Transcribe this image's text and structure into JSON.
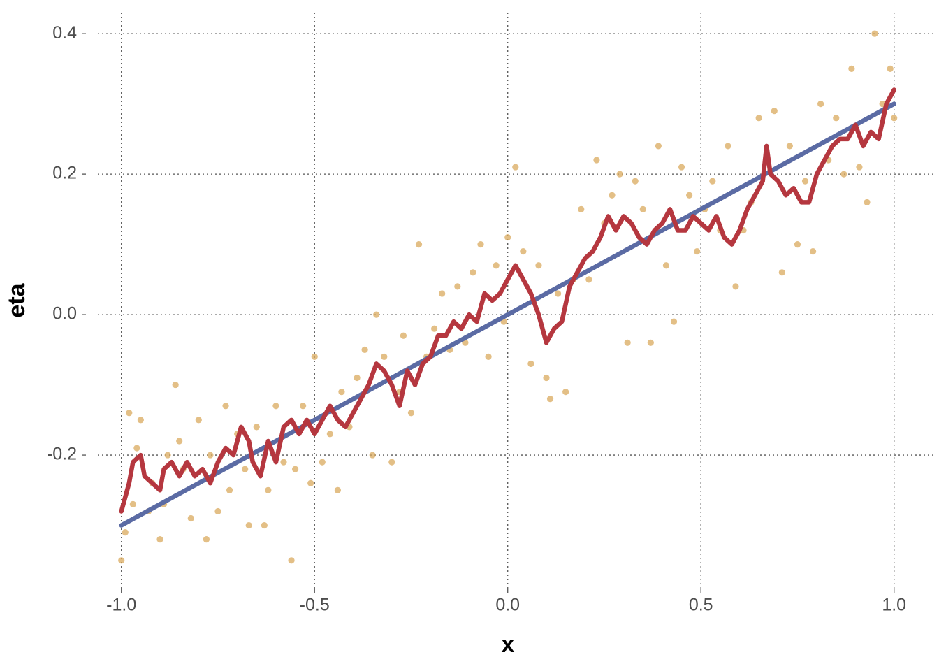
{
  "chart_data": {
    "type": "scatter",
    "x_label": "x",
    "y_label": "eta",
    "xlim": [
      -1.061,
      1.1
    ],
    "ylim": [
      -0.391,
      0.43
    ],
    "xticks": [
      {
        "value": -1.0,
        "label": "-1.0"
      },
      -0.5,
      {
        "value": 0.0,
        "label": "0.0"
      },
      0.5,
      {
        "value": 1.0,
        "label": "1.0"
      }
    ],
    "yticks": [
      -0.2,
      {
        "value": 0.0,
        "label": "0.0"
      },
      0.2,
      0.4
    ],
    "grid": true,
    "series": [
      {
        "type": "scatter",
        "color": "#d9a95e",
        "x": [
          -1.0,
          -0.99,
          -0.98,
          -0.97,
          -0.96,
          -0.95,
          -0.93,
          -0.92,
          -0.9,
          -0.89,
          -0.88,
          -0.86,
          -0.85,
          -0.84,
          -0.82,
          -0.8,
          -0.78,
          -0.77,
          -0.75,
          -0.73,
          -0.72,
          -0.7,
          -0.68,
          -0.67,
          -0.65,
          -0.63,
          -0.62,
          -0.6,
          -0.58,
          -0.56,
          -0.55,
          -0.53,
          -0.51,
          -0.5,
          -0.48,
          -0.46,
          -0.44,
          -0.43,
          -0.41,
          -0.39,
          -0.37,
          -0.35,
          -0.34,
          -0.32,
          -0.3,
          -0.28,
          -0.27,
          -0.25,
          -0.23,
          -0.21,
          -0.19,
          -0.17,
          -0.15,
          -0.13,
          -0.11,
          -0.09,
          -0.07,
          -0.05,
          -0.03,
          -0.01,
          0.0,
          0.02,
          0.04,
          0.06,
          0.08,
          0.1,
          0.11,
          0.13,
          0.15,
          0.17,
          0.19,
          0.21,
          0.23,
          0.25,
          0.27,
          0.29,
          0.31,
          0.33,
          0.35,
          0.37,
          0.39,
          0.41,
          0.43,
          0.45,
          0.47,
          0.49,
          0.51,
          0.53,
          0.55,
          0.57,
          0.59,
          0.61,
          0.63,
          0.65,
          0.67,
          0.69,
          0.71,
          0.73,
          0.75,
          0.77,
          0.79,
          0.81,
          0.83,
          0.85,
          0.87,
          0.89,
          0.91,
          0.93,
          0.95,
          0.97,
          0.99,
          1.0
        ],
        "values": [
          -0.35,
          -0.31,
          -0.14,
          -0.27,
          -0.19,
          -0.15,
          -0.28,
          -0.24,
          -0.32,
          -0.27,
          -0.2,
          -0.1,
          -0.18,
          -0.22,
          -0.29,
          -0.15,
          -0.32,
          -0.2,
          -0.28,
          -0.13,
          -0.25,
          -0.17,
          -0.22,
          -0.3,
          -0.16,
          -0.3,
          -0.25,
          -0.13,
          -0.21,
          -0.35,
          -0.22,
          -0.13,
          -0.24,
          -0.06,
          -0.21,
          -0.17,
          -0.25,
          -0.11,
          -0.16,
          -0.09,
          -0.05,
          -0.2,
          0.0,
          -0.06,
          -0.21,
          -0.11,
          -0.03,
          -0.14,
          0.1,
          -0.06,
          -0.02,
          0.03,
          -0.05,
          0.04,
          -0.04,
          0.06,
          0.1,
          -0.06,
          0.07,
          -0.01,
          0.11,
          0.21,
          0.09,
          -0.07,
          0.07,
          -0.09,
          -0.12,
          0.03,
          -0.11,
          0.05,
          0.15,
          0.05,
          0.22,
          0.13,
          0.17,
          0.2,
          -0.04,
          0.19,
          0.15,
          -0.04,
          0.24,
          0.07,
          -0.01,
          0.21,
          0.17,
          0.09,
          0.15,
          0.19,
          0.12,
          0.24,
          0.04,
          0.12,
          0.16,
          0.28,
          0.22,
          0.29,
          0.06,
          0.24,
          0.1,
          0.19,
          0.09,
          0.3,
          0.22,
          0.28,
          0.2,
          0.35,
          0.21,
          0.16,
          0.4,
          0.3,
          0.35,
          0.28
        ]
      },
      {
        "type": "line",
        "color": "#5b6ba4",
        "x": [
          -1.0,
          1.0
        ],
        "values": [
          -0.3,
          0.3
        ]
      },
      {
        "type": "line",
        "color": "#b5373f",
        "x": [
          -1.0,
          -0.98,
          -0.97,
          -0.95,
          -0.94,
          -0.92,
          -0.9,
          -0.89,
          -0.87,
          -0.85,
          -0.83,
          -0.81,
          -0.79,
          -0.77,
          -0.75,
          -0.73,
          -0.71,
          -0.69,
          -0.67,
          -0.66,
          -0.64,
          -0.62,
          -0.6,
          -0.58,
          -0.56,
          -0.54,
          -0.52,
          -0.5,
          -0.48,
          -0.46,
          -0.44,
          -0.42,
          -0.4,
          -0.38,
          -0.36,
          -0.34,
          -0.32,
          -0.3,
          -0.28,
          -0.26,
          -0.24,
          -0.22,
          -0.2,
          -0.18,
          -0.16,
          -0.14,
          -0.12,
          -0.1,
          -0.08,
          -0.06,
          -0.04,
          -0.02,
          0.0,
          0.02,
          0.04,
          0.06,
          0.08,
          0.1,
          0.12,
          0.14,
          0.16,
          0.18,
          0.2,
          0.22,
          0.24,
          0.26,
          0.28,
          0.3,
          0.32,
          0.34,
          0.36,
          0.38,
          0.4,
          0.42,
          0.44,
          0.46,
          0.48,
          0.5,
          0.52,
          0.54,
          0.56,
          0.58,
          0.6,
          0.62,
          0.64,
          0.66,
          0.67,
          0.68,
          0.7,
          0.72,
          0.74,
          0.76,
          0.78,
          0.8,
          0.82,
          0.84,
          0.86,
          0.88,
          0.9,
          0.92,
          0.94,
          0.96,
          0.98,
          1.0
        ],
        "values": [
          -0.28,
          -0.24,
          -0.21,
          -0.2,
          -0.23,
          -0.24,
          -0.25,
          -0.22,
          -0.21,
          -0.23,
          -0.21,
          -0.23,
          -0.22,
          -0.24,
          -0.21,
          -0.19,
          -0.2,
          -0.16,
          -0.18,
          -0.21,
          -0.23,
          -0.18,
          -0.21,
          -0.16,
          -0.15,
          -0.17,
          -0.15,
          -0.17,
          -0.15,
          -0.13,
          -0.15,
          -0.16,
          -0.14,
          -0.12,
          -0.1,
          -0.07,
          -0.08,
          -0.1,
          -0.13,
          -0.08,
          -0.1,
          -0.07,
          -0.06,
          -0.03,
          -0.03,
          -0.01,
          -0.02,
          0.0,
          -0.01,
          0.03,
          0.02,
          0.03,
          0.05,
          0.07,
          0.05,
          0.03,
          0.0,
          -0.04,
          -0.02,
          -0.01,
          0.04,
          0.06,
          0.08,
          0.09,
          0.11,
          0.14,
          0.12,
          0.14,
          0.13,
          0.11,
          0.1,
          0.12,
          0.13,
          0.15,
          0.12,
          0.12,
          0.14,
          0.13,
          0.12,
          0.14,
          0.11,
          0.1,
          0.12,
          0.15,
          0.17,
          0.19,
          0.24,
          0.2,
          0.19,
          0.17,
          0.18,
          0.16,
          0.16,
          0.2,
          0.22,
          0.24,
          0.25,
          0.25,
          0.27,
          0.24,
          0.26,
          0.25,
          0.3,
          0.32
        ]
      }
    ]
  }
}
